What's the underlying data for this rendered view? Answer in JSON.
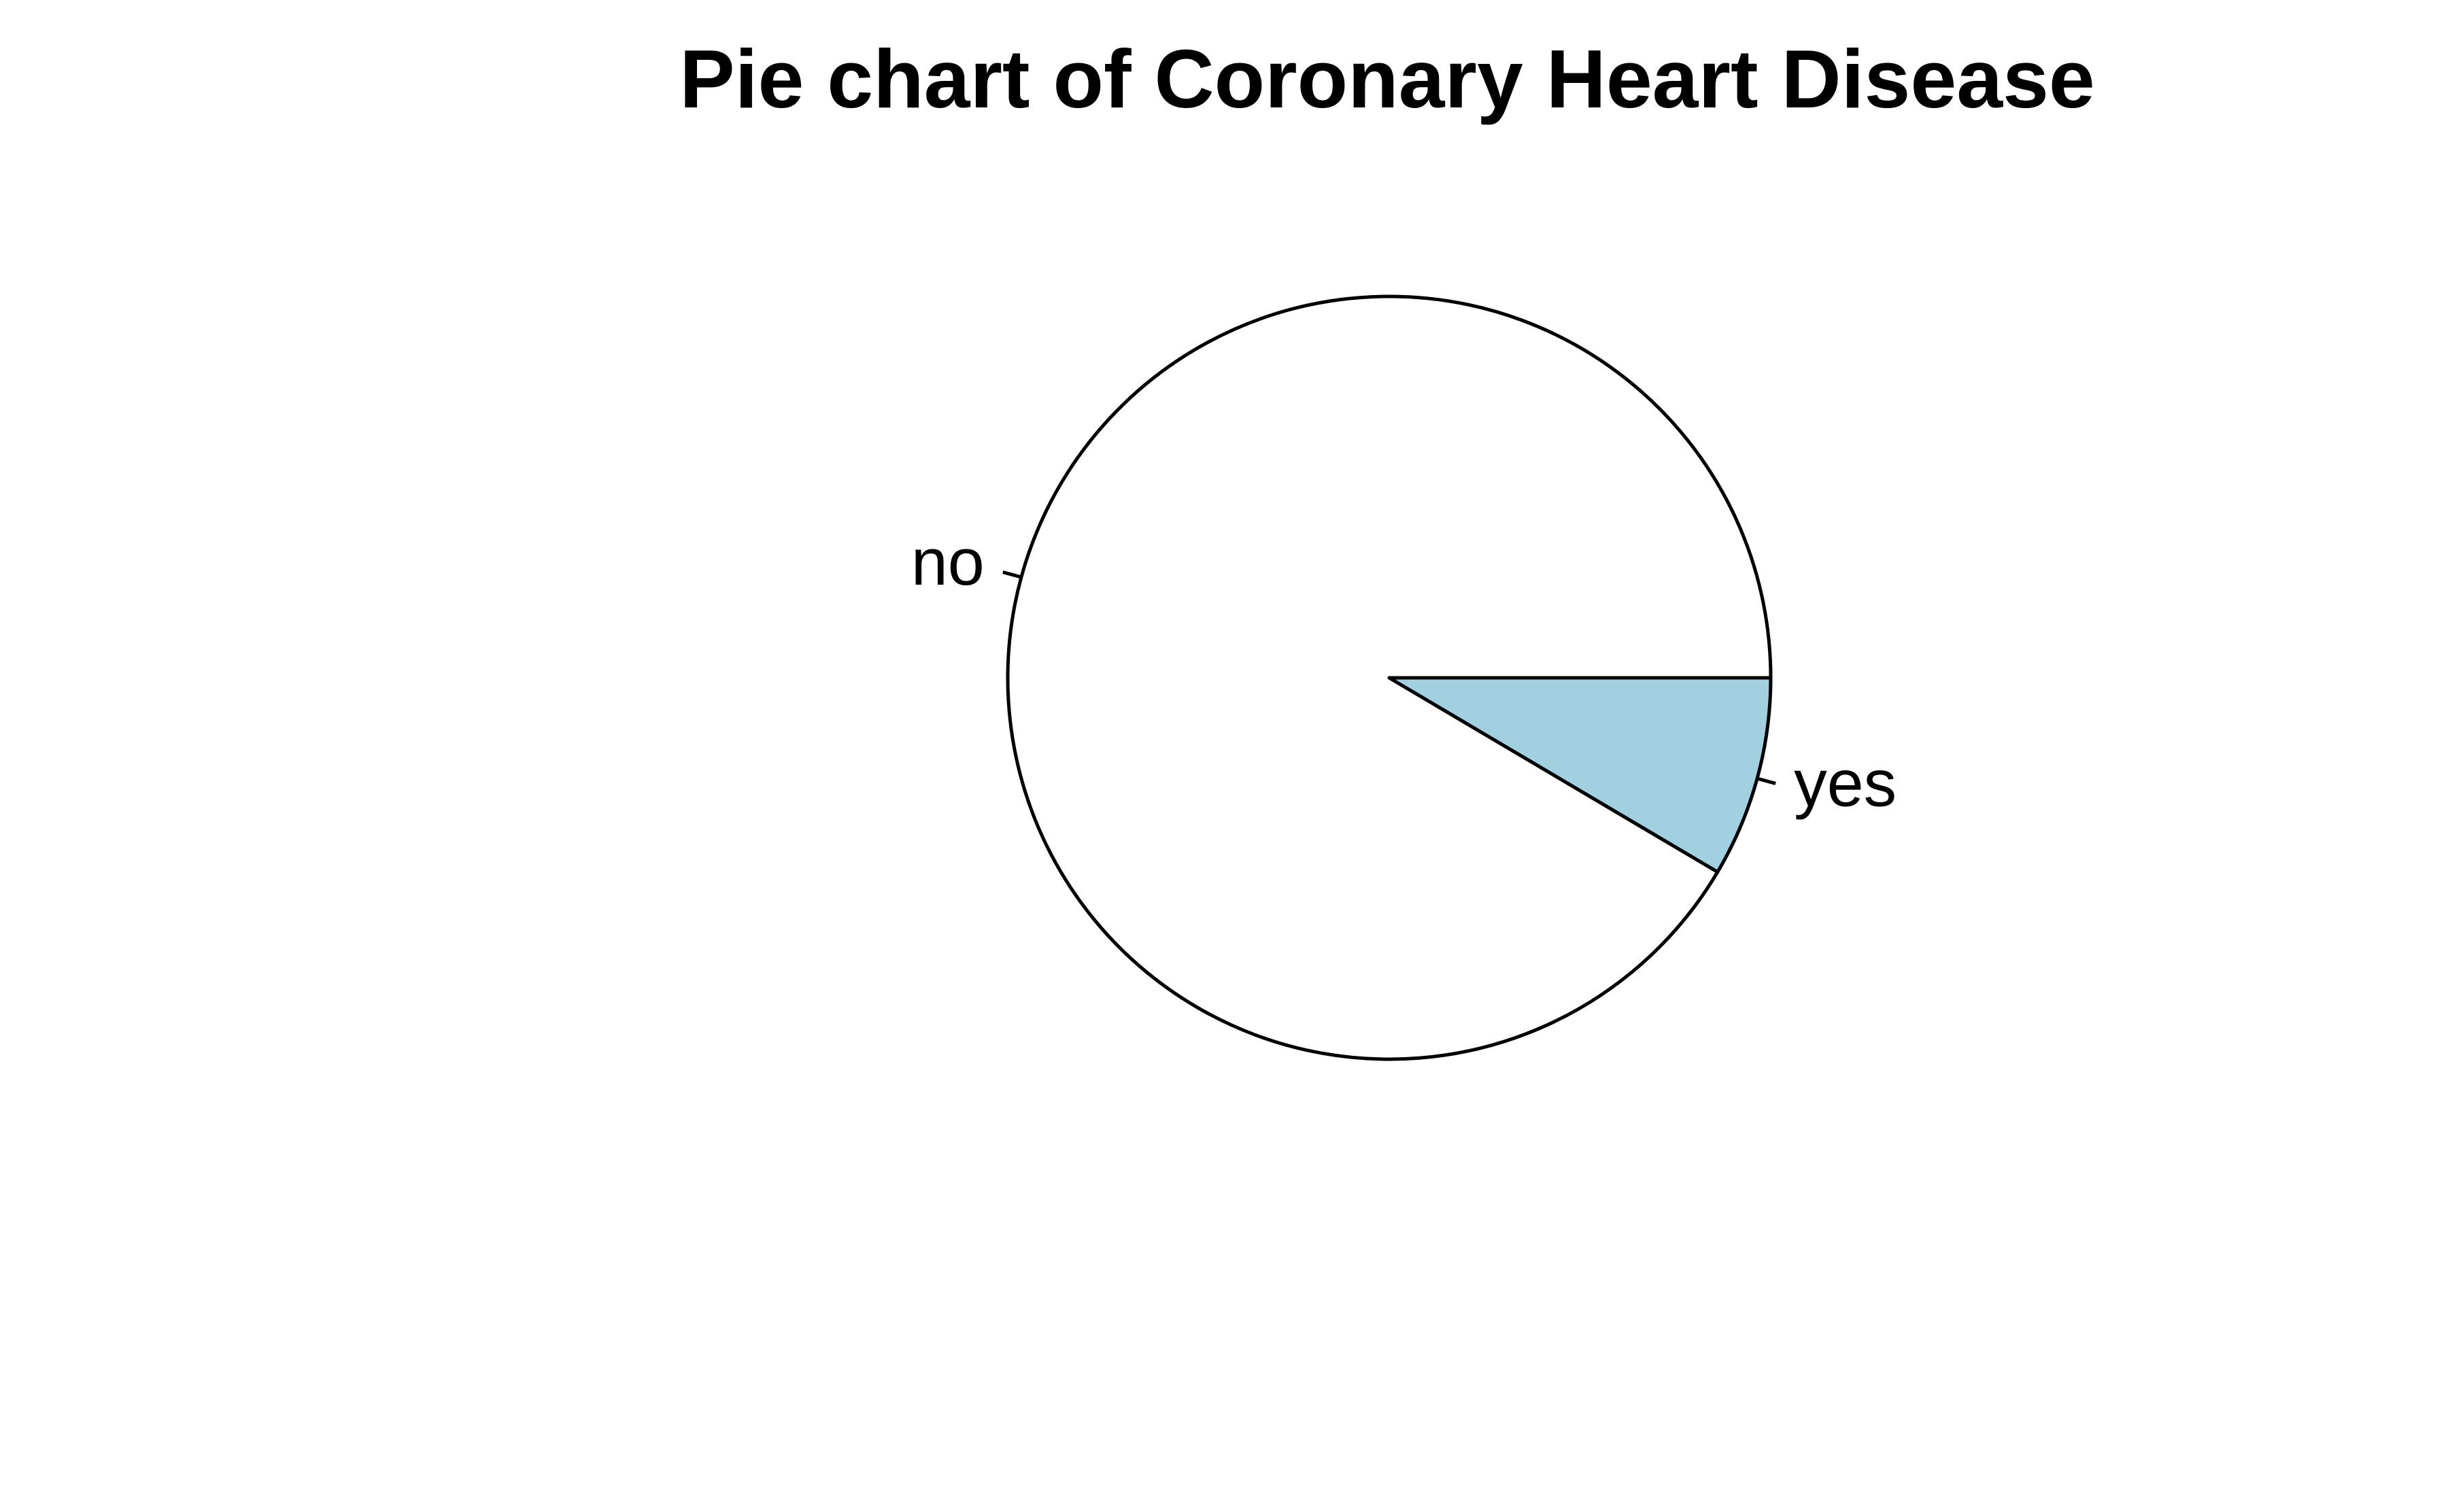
{
  "chart_data": {
    "type": "pie",
    "title": "Pie chart of Coronary Heart Disease",
    "categories": [
      "no",
      "yes"
    ],
    "values": [
      91.5,
      8.5
    ],
    "colors": [
      "#FFFFFF",
      "#A1D0E1"
    ],
    "start_angle_deg": 0,
    "direction": "counterclockwise",
    "legend": "none"
  }
}
